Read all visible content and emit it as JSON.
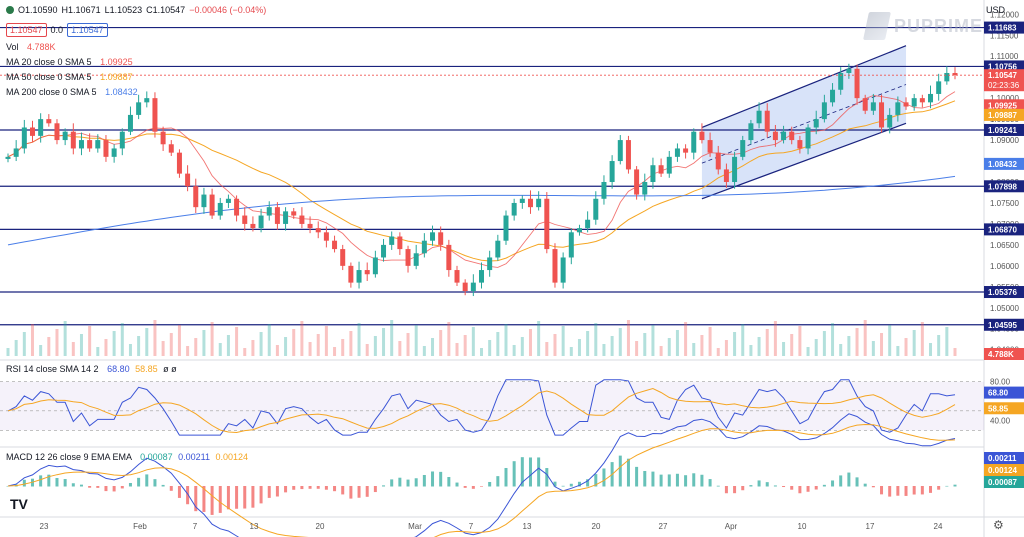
{
  "header": {
    "open": "O1.10590",
    "high": "H1.10671",
    "low": "L1.10523",
    "close": "C1.10547",
    "change": "−0.00046 (−0.04%)",
    "price_sell": "1.10547",
    "spread": "0.0",
    "price_buy": "1.10547"
  },
  "legend": {
    "vol": "Vol",
    "vol_value": "4.788K",
    "ma20": "MA 20 close 0 SMA 5",
    "ma20_value": "1.09925",
    "ma50": "MA 50 close 0 SMA 5",
    "ma50_value": "1.09887",
    "ma200": "MA 200 close 0 SMA 5",
    "ma200_value": "1.08432",
    "rsi": "RSI 14 close SMA 14 2",
    "rsi_value": "68.80",
    "rsi_ma_value": "58.85",
    "rsi_extra": "ø ø",
    "macd": "MACD 12 26 close 9 EMA EMA",
    "macd_hist_value": "0.00087",
    "macd_value": "0.00211",
    "macd_signal_value": "0.00124"
  },
  "currency": "USD",
  "brand": "PUPRIME",
  "tv_logo": "TV",
  "colors": {
    "up": "#26a69a",
    "down": "#ef5350",
    "ma20": "#ef5350",
    "ma50": "#f5a623",
    "ma200": "#4a7ee8",
    "hline": "#1a237e",
    "channel_fill": "#c7d7f7",
    "rsi": "#3b55d6",
    "rsi_ma": "#f5a623"
  },
  "chart_data": {
    "type": "candlestick",
    "symbol": "EURUSD",
    "ylim": [
      1.0385,
      1.1215
    ],
    "price_ticks": [
      "1.12000",
      "1.11500",
      "1.11000",
      "1.10500",
      "1.10000",
      "1.09500",
      "1.09000",
      "1.08500",
      "1.08000",
      "1.07500",
      "1.07000",
      "1.06500",
      "1.06000",
      "1.05500",
      "1.05000",
      "1.04500",
      "1.04000"
    ],
    "x_labels": [
      "23",
      "Feb",
      "7",
      "13",
      "20",
      "Mar",
      "7",
      "13",
      "20",
      "27",
      "Apr",
      "10",
      "17",
      "24"
    ],
    "horizontal_levels": [
      1.11683,
      1.10756,
      1.09241,
      1.07898,
      1.0687,
      1.05376,
      1.04595
    ],
    "level_labels": [
      "1.11683",
      "1.10756",
      "1.09241",
      "1.07898",
      "1.06870",
      "1.05376",
      "1.04595"
    ],
    "badges": [
      {
        "label": "1.10547",
        "sub": "02:23:36",
        "color": "#ef5350"
      },
      {
        "label": "1.09925",
        "color": "#ef5350"
      },
      {
        "label": "1.09887",
        "color": "#f5a623"
      },
      {
        "label": "1.08432",
        "color": "#4a7ee8"
      },
      {
        "label": "4.788K",
        "color": "#ef5350"
      }
    ],
    "rsi_ticks": [
      "80.00",
      "40.00"
    ],
    "rsi_badges": [
      {
        "label": "68.80",
        "color": "#3b55d6"
      },
      {
        "label": "58.85",
        "color": "#f5a623"
      }
    ],
    "macd_badges": [
      {
        "label": "0.00211",
        "color": "#3b55d6"
      },
      {
        "label": "0.00124",
        "color": "#f5a623"
      },
      {
        "label": "0.00087",
        "color": "#26a69a"
      }
    ],
    "channel": {
      "upper": [
        [
          1.093,
          1.1125
        ]
      ],
      "lower": [
        [
          1.076,
          1.094
        ]
      ]
    },
    "closes": [
      1.086,
      1.088,
      1.093,
      1.091,
      1.095,
      1.094,
      1.09,
      1.092,
      1.088,
      1.09,
      1.088,
      1.09,
      1.086,
      1.088,
      1.092,
      1.096,
      1.099,
      1.1,
      1.092,
      1.089,
      1.087,
      1.082,
      1.079,
      1.074,
      1.077,
      1.072,
      1.075,
      1.076,
      1.072,
      1.07,
      1.069,
      1.072,
      1.074,
      1.07,
      1.073,
      1.072,
      1.07,
      1.069,
      1.068,
      1.066,
      1.064,
      1.06,
      1.056,
      1.059,
      1.058,
      1.062,
      1.065,
      1.067,
      1.064,
      1.06,
      1.063,
      1.066,
      1.068,
      1.065,
      1.059,
      1.056,
      1.054,
      1.056,
      1.059,
      1.062,
      1.066,
      1.072,
      1.075,
      1.076,
      1.074,
      1.076,
      1.064,
      1.056,
      1.062,
      1.068,
      1.069,
      1.071,
      1.076,
      1.08,
      1.085,
      1.09,
      1.083,
      1.077,
      1.08,
      1.084,
      1.082,
      1.086,
      1.088,
      1.087,
      1.092,
      1.09,
      1.087,
      1.083,
      1.08,
      1.086,
      1.09,
      1.094,
      1.097,
      1.092,
      1.09,
      1.092,
      1.09,
      1.088,
      1.093,
      1.095,
      1.099,
      1.102,
      1.106,
      1.107,
      1.1,
      1.097,
      1.099,
      1.093,
      1.096,
      1.099,
      1.098,
      1.1,
      1.099,
      1.101,
      1.104,
      1.106,
      1.1055
    ]
  }
}
